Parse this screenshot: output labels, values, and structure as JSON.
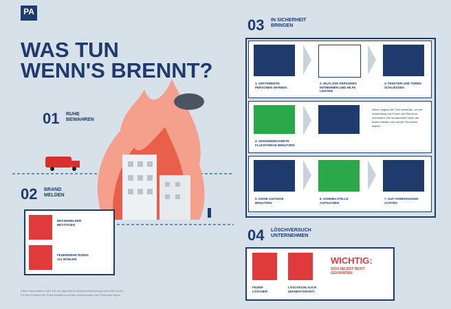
{
  "header": {
    "logo": "PA",
    "title_line1": "WAS TUN",
    "title_line2": "WENN'S BRENNT?"
  },
  "section1": {
    "number": "01",
    "title_line1": "RUHE",
    "title_line2": "BEWAHREN"
  },
  "section2": {
    "number": "02",
    "title_line1": "BRAND",
    "title_line2": "MELDEN",
    "items": [
      {
        "line1": "BRANDMELDER",
        "line2": "BETÄTIGEN"
      },
      {
        "line1": "FEUERWEHR RUFEN",
        "line2": "112 WÄHLEN"
      }
    ]
  },
  "section3": {
    "number": "03",
    "title_line1": "IN SICHERHEIT",
    "title_line2": "BRINGEN",
    "steps": [
      {
        "line1": "1. GEFÄHRDETE",
        "line2": "PERSONEN WARNEN"
      },
      {
        "line1": "2. HILFLOSE PERSONEN",
        "line2": "MITNEHMEN UND HILFE",
        "line3": "LEISTEN"
      },
      {
        "line1": "3. FENSTER UND TÜREN",
        "line2": "SCHLIESSEN"
      },
      {
        "line1": "4. GEKENNZEICHNETE",
        "line2": "FLUCHTWEGE BENUTZEN"
      },
      {
        "line1": "5. KEINE AUFZÜGE",
        "line2": "BENUTZEN"
      },
      {
        "line1": "6. SAMMELSTELLE",
        "line2": "AUFSUCHEN"
      },
      {
        "line1": "7. AUF ANWEISUNGEN",
        "line2": "ACHTEN"
      }
    ],
    "note": "Wenn möglich die Türe schließen, um die Ausbreitung von Feuer und Rauch zu verhindern. Bei verrauchten Fluren am Boden bleiben und auf die Feuerwehr warten."
  },
  "section4": {
    "number": "04",
    "title_line1": "LÖSCHVERSUCH",
    "title_line2": "UNTERNEHMEN",
    "items": [
      {
        "line1": "FEUER-",
        "line2": "LÖSCHER"
      },
      {
        "line1": "LÖSCHSCHLAUCH",
        "line2": "(WANDHYDRANT)"
      }
    ],
    "warning_title": "WICHTIG:",
    "warning_line1": "SICH SELBST NICHT",
    "warning_line2": "GEFÄHRDEN"
  },
  "footer": {
    "line1": "Diese Informationen sind Teil der allgemeinen Brandschutzordnung nach DIN 14096.",
    "line2": "Für den Ernstfall gilt: Ruhe bewahren und den Anweisungen des Personals folgen."
  }
}
